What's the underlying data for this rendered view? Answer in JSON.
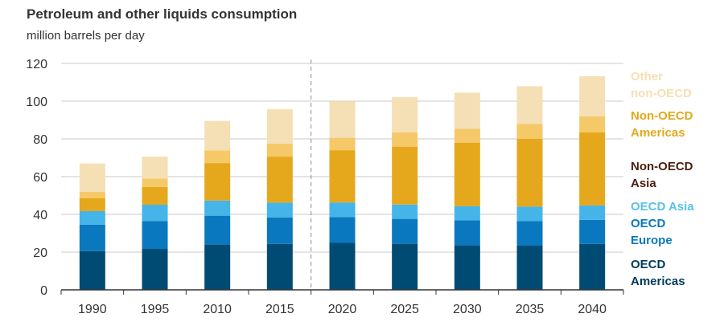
{
  "title": "Petroleum and other liquids consumption",
  "subtitle": "million barrels per day",
  "chart_data": {
    "type": "bar",
    "stacked": true,
    "title": "Petroleum and other liquids consumption",
    "ylabel": "million barrels per day",
    "ylim": [
      0,
      120
    ],
    "yticks": [
      0,
      20,
      40,
      60,
      80,
      100,
      120
    ],
    "grid": true,
    "legend_position": "right",
    "projection_divider_after": "2015",
    "categories": [
      "1990",
      "1995",
      "2010",
      "2015",
      "2020",
      "2025",
      "2030",
      "2035",
      "2040"
    ],
    "series": [
      {
        "name": "OECD Americas",
        "color": "#004b74",
        "values": [
          20.5,
          21.7,
          24.0,
          24.3,
          24.9,
          24.4,
          23.7,
          23.4,
          24.3
        ]
      },
      {
        "name": "OECD Europe",
        "color": "#0a78be",
        "values": [
          14.0,
          14.8,
          15.3,
          14.0,
          13.6,
          13.2,
          13.2,
          13.1,
          12.8
        ]
      },
      {
        "name": "OECD Asia",
        "color": "#45b4e8",
        "values": [
          7.2,
          8.6,
          8.0,
          7.9,
          7.8,
          7.6,
          7.4,
          7.6,
          7.6
        ]
      },
      {
        "name": "Non-OECD Asia",
        "color": "#e5a81c",
        "values": [
          6.8,
          9.4,
          19.9,
          24.4,
          27.7,
          30.7,
          33.7,
          35.9,
          38.7
        ]
      },
      {
        "name": "Non-OECD Americas",
        "color": "#f5c868",
        "values": [
          3.4,
          4.5,
          6.7,
          6.8,
          6.6,
          7.6,
          7.3,
          7.9,
          8.5
        ]
      },
      {
        "name": "Other non-OECD",
        "color": "#f5dfb4",
        "values": [
          15.1,
          11.6,
          15.6,
          18.3,
          19.3,
          18.6,
          19.2,
          20.0,
          21.3
        ]
      }
    ],
    "legend": [
      {
        "lines": [
          "Other",
          "non-OECD"
        ],
        "color": "#f5dfb4"
      },
      {
        "lines": [
          "Non-OECD",
          "Americas"
        ],
        "color": "#e5a81c"
      },
      {
        "lines": [
          "Non-OECD",
          "Asia"
        ],
        "color": "#4a1f10"
      },
      {
        "lines": [
          "OECD Asia"
        ],
        "color": "#5bc0eb"
      },
      {
        "lines": [
          "OECD",
          "Europe"
        ],
        "color": "#0a78be"
      },
      {
        "lines": [
          "OECD",
          "Americas"
        ],
        "color": "#003b5c"
      }
    ]
  }
}
